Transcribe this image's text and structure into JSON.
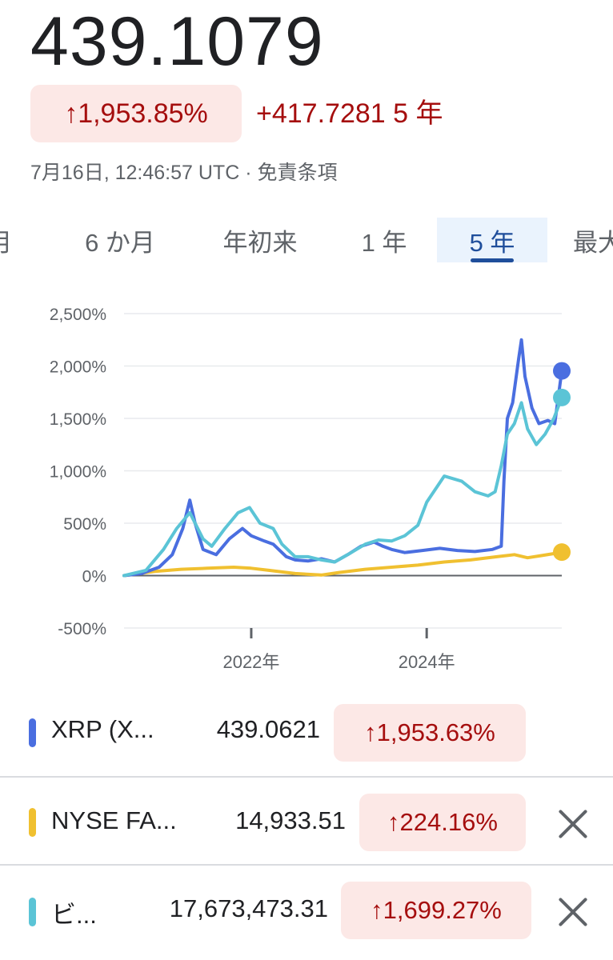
{
  "quote": {
    "price": "439.1079",
    "change_percent": "↑1,953.85%",
    "change_value": "+417.7281 5 年",
    "timestamp": "7月16日, 12:46:57 UTC · 免責条項"
  },
  "tabs": [
    {
      "label": "月",
      "active": false
    },
    {
      "label": "6 か月",
      "active": false
    },
    {
      "label": "年初来",
      "active": false
    },
    {
      "label": "1 年",
      "active": false
    },
    {
      "label": "5 年",
      "active": true
    },
    {
      "label": "最大",
      "active": false
    }
  ],
  "colors": {
    "xrp": "#4a6ee0",
    "nyse_fang": "#f0c030",
    "bitcoin": "#5bc4d6",
    "up_red": "#a50e0e",
    "chip_bg": "#fce8e6",
    "tab_active": "#1f4e9b"
  },
  "chart_data": {
    "type": "line",
    "y_ticks": [
      "2,500%",
      "2,000%",
      "1,500%",
      "1,000%",
      "500%",
      "0%",
      "-500%"
    ],
    "x_ticks": [
      "2022年",
      "2024年"
    ],
    "ylim": [
      -500,
      2500
    ],
    "xlim": [
      2020.55,
      2025.54
    ],
    "grid": true,
    "series": [
      {
        "name": "XRP (X...",
        "color": "#4a6ee0",
        "points": [
          [
            2020.55,
            0
          ],
          [
            2020.75,
            20
          ],
          [
            2020.95,
            80
          ],
          [
            2021.1,
            200
          ],
          [
            2021.22,
            450
          ],
          [
            2021.3,
            720
          ],
          [
            2021.36,
            500
          ],
          [
            2021.45,
            250
          ],
          [
            2021.6,
            200
          ],
          [
            2021.75,
            350
          ],
          [
            2021.9,
            450
          ],
          [
            2022.0,
            380
          ],
          [
            2022.15,
            330
          ],
          [
            2022.25,
            300
          ],
          [
            2022.4,
            180
          ],
          [
            2022.5,
            150
          ],
          [
            2022.65,
            140
          ],
          [
            2022.8,
            160
          ],
          [
            2022.95,
            130
          ],
          [
            2023.1,
            200
          ],
          [
            2023.25,
            280
          ],
          [
            2023.4,
            320
          ],
          [
            2023.5,
            280
          ],
          [
            2023.6,
            250
          ],
          [
            2023.75,
            220
          ],
          [
            2023.95,
            240
          ],
          [
            2024.15,
            260
          ],
          [
            2024.35,
            240
          ],
          [
            2024.55,
            230
          ],
          [
            2024.75,
            250
          ],
          [
            2024.85,
            280
          ],
          [
            2024.88,
            900
          ],
          [
            2024.92,
            1500
          ],
          [
            2024.98,
            1650
          ],
          [
            2025.05,
            2080
          ],
          [
            2025.08,
            2250
          ],
          [
            2025.12,
            1900
          ],
          [
            2025.2,
            1600
          ],
          [
            2025.28,
            1450
          ],
          [
            2025.38,
            1480
          ],
          [
            2025.46,
            1450
          ],
          [
            2025.54,
            1953.6
          ]
        ]
      },
      {
        "name": "NYSE FA...",
        "color": "#f0c030",
        "points": [
          [
            2020.55,
            0
          ],
          [
            2020.9,
            40
          ],
          [
            2021.2,
            60
          ],
          [
            2021.5,
            70
          ],
          [
            2021.8,
            80
          ],
          [
            2022.0,
            70
          ],
          [
            2022.2,
            50
          ],
          [
            2022.5,
            20
          ],
          [
            2022.8,
            5
          ],
          [
            2023.0,
            30
          ],
          [
            2023.3,
            60
          ],
          [
            2023.6,
            80
          ],
          [
            2023.9,
            100
          ],
          [
            2024.2,
            130
          ],
          [
            2024.5,
            150
          ],
          [
            2024.8,
            180
          ],
          [
            2025.0,
            200
          ],
          [
            2025.15,
            170
          ],
          [
            2025.3,
            190
          ],
          [
            2025.45,
            210
          ],
          [
            2025.54,
            224.2
          ]
        ]
      },
      {
        "name": "ビ...",
        "color": "#5bc4d6",
        "points": [
          [
            2020.55,
            0
          ],
          [
            2020.8,
            50
          ],
          [
            2021.0,
            250
          ],
          [
            2021.15,
            450
          ],
          [
            2021.3,
            600
          ],
          [
            2021.45,
            350
          ],
          [
            2021.55,
            280
          ],
          [
            2021.7,
            450
          ],
          [
            2021.85,
            600
          ],
          [
            2021.98,
            650
          ],
          [
            2022.1,
            500
          ],
          [
            2022.25,
            450
          ],
          [
            2022.35,
            300
          ],
          [
            2022.5,
            180
          ],
          [
            2022.65,
            180
          ],
          [
            2022.8,
            150
          ],
          [
            2022.95,
            130
          ],
          [
            2023.1,
            200
          ],
          [
            2023.3,
            300
          ],
          [
            2023.45,
            340
          ],
          [
            2023.6,
            330
          ],
          [
            2023.75,
            380
          ],
          [
            2023.9,
            480
          ],
          [
            2024.0,
            700
          ],
          [
            2024.2,
            950
          ],
          [
            2024.4,
            900
          ],
          [
            2024.55,
            800
          ],
          [
            2024.7,
            760
          ],
          [
            2024.78,
            800
          ],
          [
            2024.85,
            1050
          ],
          [
            2024.92,
            1350
          ],
          [
            2025.0,
            1450
          ],
          [
            2025.08,
            1650
          ],
          [
            2025.15,
            1400
          ],
          [
            2025.25,
            1250
          ],
          [
            2025.35,
            1350
          ],
          [
            2025.45,
            1500
          ],
          [
            2025.54,
            1699.3
          ]
        ]
      }
    ]
  },
  "legend": [
    {
      "name": "XRP (X...",
      "value": "439.0621",
      "change": "↑1,953.63%",
      "color": "#4a6ee0",
      "removable": false
    },
    {
      "name": "NYSE FA...",
      "value": "14,933.51",
      "change": "↑224.16%",
      "color": "#f0c030",
      "removable": true
    },
    {
      "name": "ビ...",
      "value": "17,673,473.31",
      "change": "↑1,699.27%",
      "color": "#5bc4d6",
      "removable": true
    }
  ]
}
